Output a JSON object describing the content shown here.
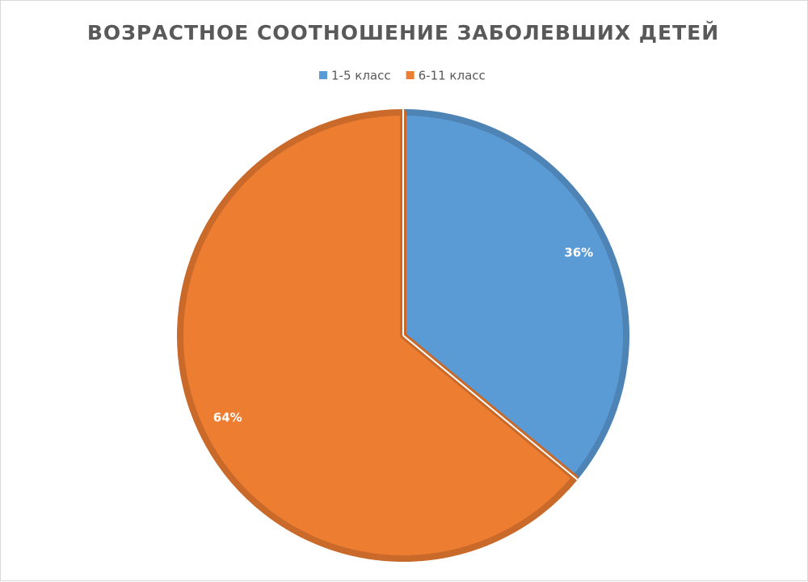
{
  "chart_data": {
    "type": "pie",
    "title": "ВОЗРАСТНОЕ СООТНОШЕНИЕ ЗАБОЛЕВШИХ ДЕТЕЙ",
    "categories": [
      "1-5 класс",
      "6-11 класс"
    ],
    "values": [
      36,
      64
    ],
    "value_labels": [
      "36%",
      "64%"
    ],
    "colors": [
      "#5b9bd5",
      "#ed7d31"
    ],
    "legend": "top"
  }
}
